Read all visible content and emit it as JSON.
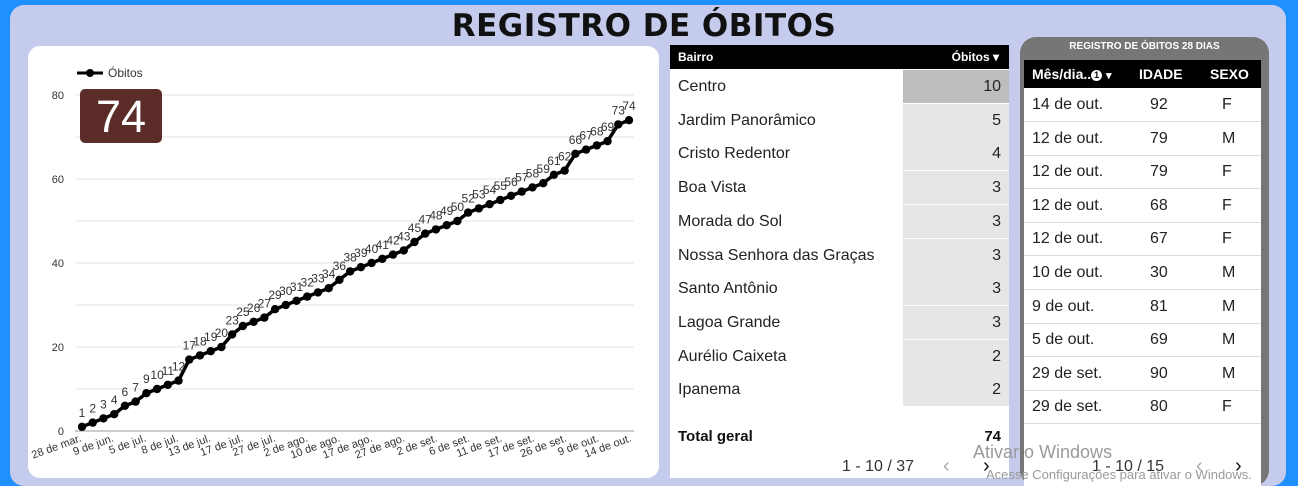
{
  "title": "REGISTRO DE ÓBITOS",
  "kpi": "74",
  "chart_data": {
    "type": "line",
    "series": [
      {
        "name": "Óbitos",
        "values": [
          1,
          2,
          3,
          4,
          6,
          7,
          9,
          10,
          11,
          12,
          17,
          18,
          19,
          20,
          23,
          25,
          26,
          27,
          29,
          30,
          31,
          32,
          33,
          34,
          36,
          38,
          39,
          40,
          41,
          42,
          43,
          45,
          47,
          48,
          49,
          50,
          52,
          53,
          54,
          55,
          56,
          57,
          58,
          59,
          61,
          62,
          66,
          67,
          68,
          69,
          73,
          74
        ]
      }
    ],
    "x_ticks": [
      "28 de mar.",
      "9 de jun.",
      "5 de jul.",
      "8 de jul.",
      "13 de jul.",
      "17 de jul.",
      "27 de jul.",
      "2 de ago.",
      "10 de ago.",
      "17 de ago.",
      "27 de ago.",
      "2 de set.",
      "6 de set.",
      "11 de set.",
      "17 de set.",
      "26 de set.",
      "9 de out.",
      "14 de out."
    ],
    "y_ticks": [
      "0",
      "20",
      "40",
      "60",
      "80"
    ],
    "ylim": [
      0,
      80
    ],
    "grid": true,
    "legend": "top-left",
    "line_color": "#000000"
  },
  "table1": {
    "col1": "Bairro",
    "col2": "Óbitos",
    "sort_icon": "caret-down-icon",
    "rows": [
      {
        "name": "Centro",
        "value": "10"
      },
      {
        "name": "Jardim Panorâmico",
        "value": "5"
      },
      {
        "name": "Cristo Redentor",
        "value": "4"
      },
      {
        "name": "Boa Vista",
        "value": "3"
      },
      {
        "name": "Morada do Sol",
        "value": "3"
      },
      {
        "name": "Nossa Senhora das Graças",
        "value": "3"
      },
      {
        "name": "Santo Antônio",
        "value": "3"
      },
      {
        "name": "Lagoa Grande",
        "value": "3"
      },
      {
        "name": "Aurélio Caixeta",
        "value": "2"
      },
      {
        "name": "Ipanema",
        "value": "2"
      }
    ],
    "total_label": "Total geral",
    "total_value": "74",
    "pager": "1 - 10 / 37"
  },
  "table2": {
    "title": "REGISTRO DE ÓBITOS 28 DIAS",
    "col1": "Mês/dia..",
    "col1_badge": "1",
    "col2": "IDADE",
    "col3": "SEXO",
    "rows": [
      {
        "date": "14 de out.",
        "age": "92",
        "sex": "F"
      },
      {
        "date": "12 de out.",
        "age": "79",
        "sex": "M"
      },
      {
        "date": "12 de out.",
        "age": "79",
        "sex": "F"
      },
      {
        "date": "12 de out.",
        "age": "68",
        "sex": "F"
      },
      {
        "date": "12 de out.",
        "age": "67",
        "sex": "F"
      },
      {
        "date": "10 de out.",
        "age": "30",
        "sex": "M"
      },
      {
        "date": "9 de out.",
        "age": "81",
        "sex": "M"
      },
      {
        "date": "5 de out.",
        "age": "69",
        "sex": "M"
      },
      {
        "date": "29 de set.",
        "age": "90",
        "sex": "M"
      },
      {
        "date": "29 de set.",
        "age": "80",
        "sex": "F"
      }
    ],
    "pager": "1 - 10 / 15"
  },
  "watermark": {
    "line1": "Ativar o Windows",
    "line2": "Acesse Configurações para ativar o Windows."
  },
  "colors": {
    "kpi_bg": "#5b2c28",
    "frame": "#c5cbec",
    "header": "#000000"
  }
}
